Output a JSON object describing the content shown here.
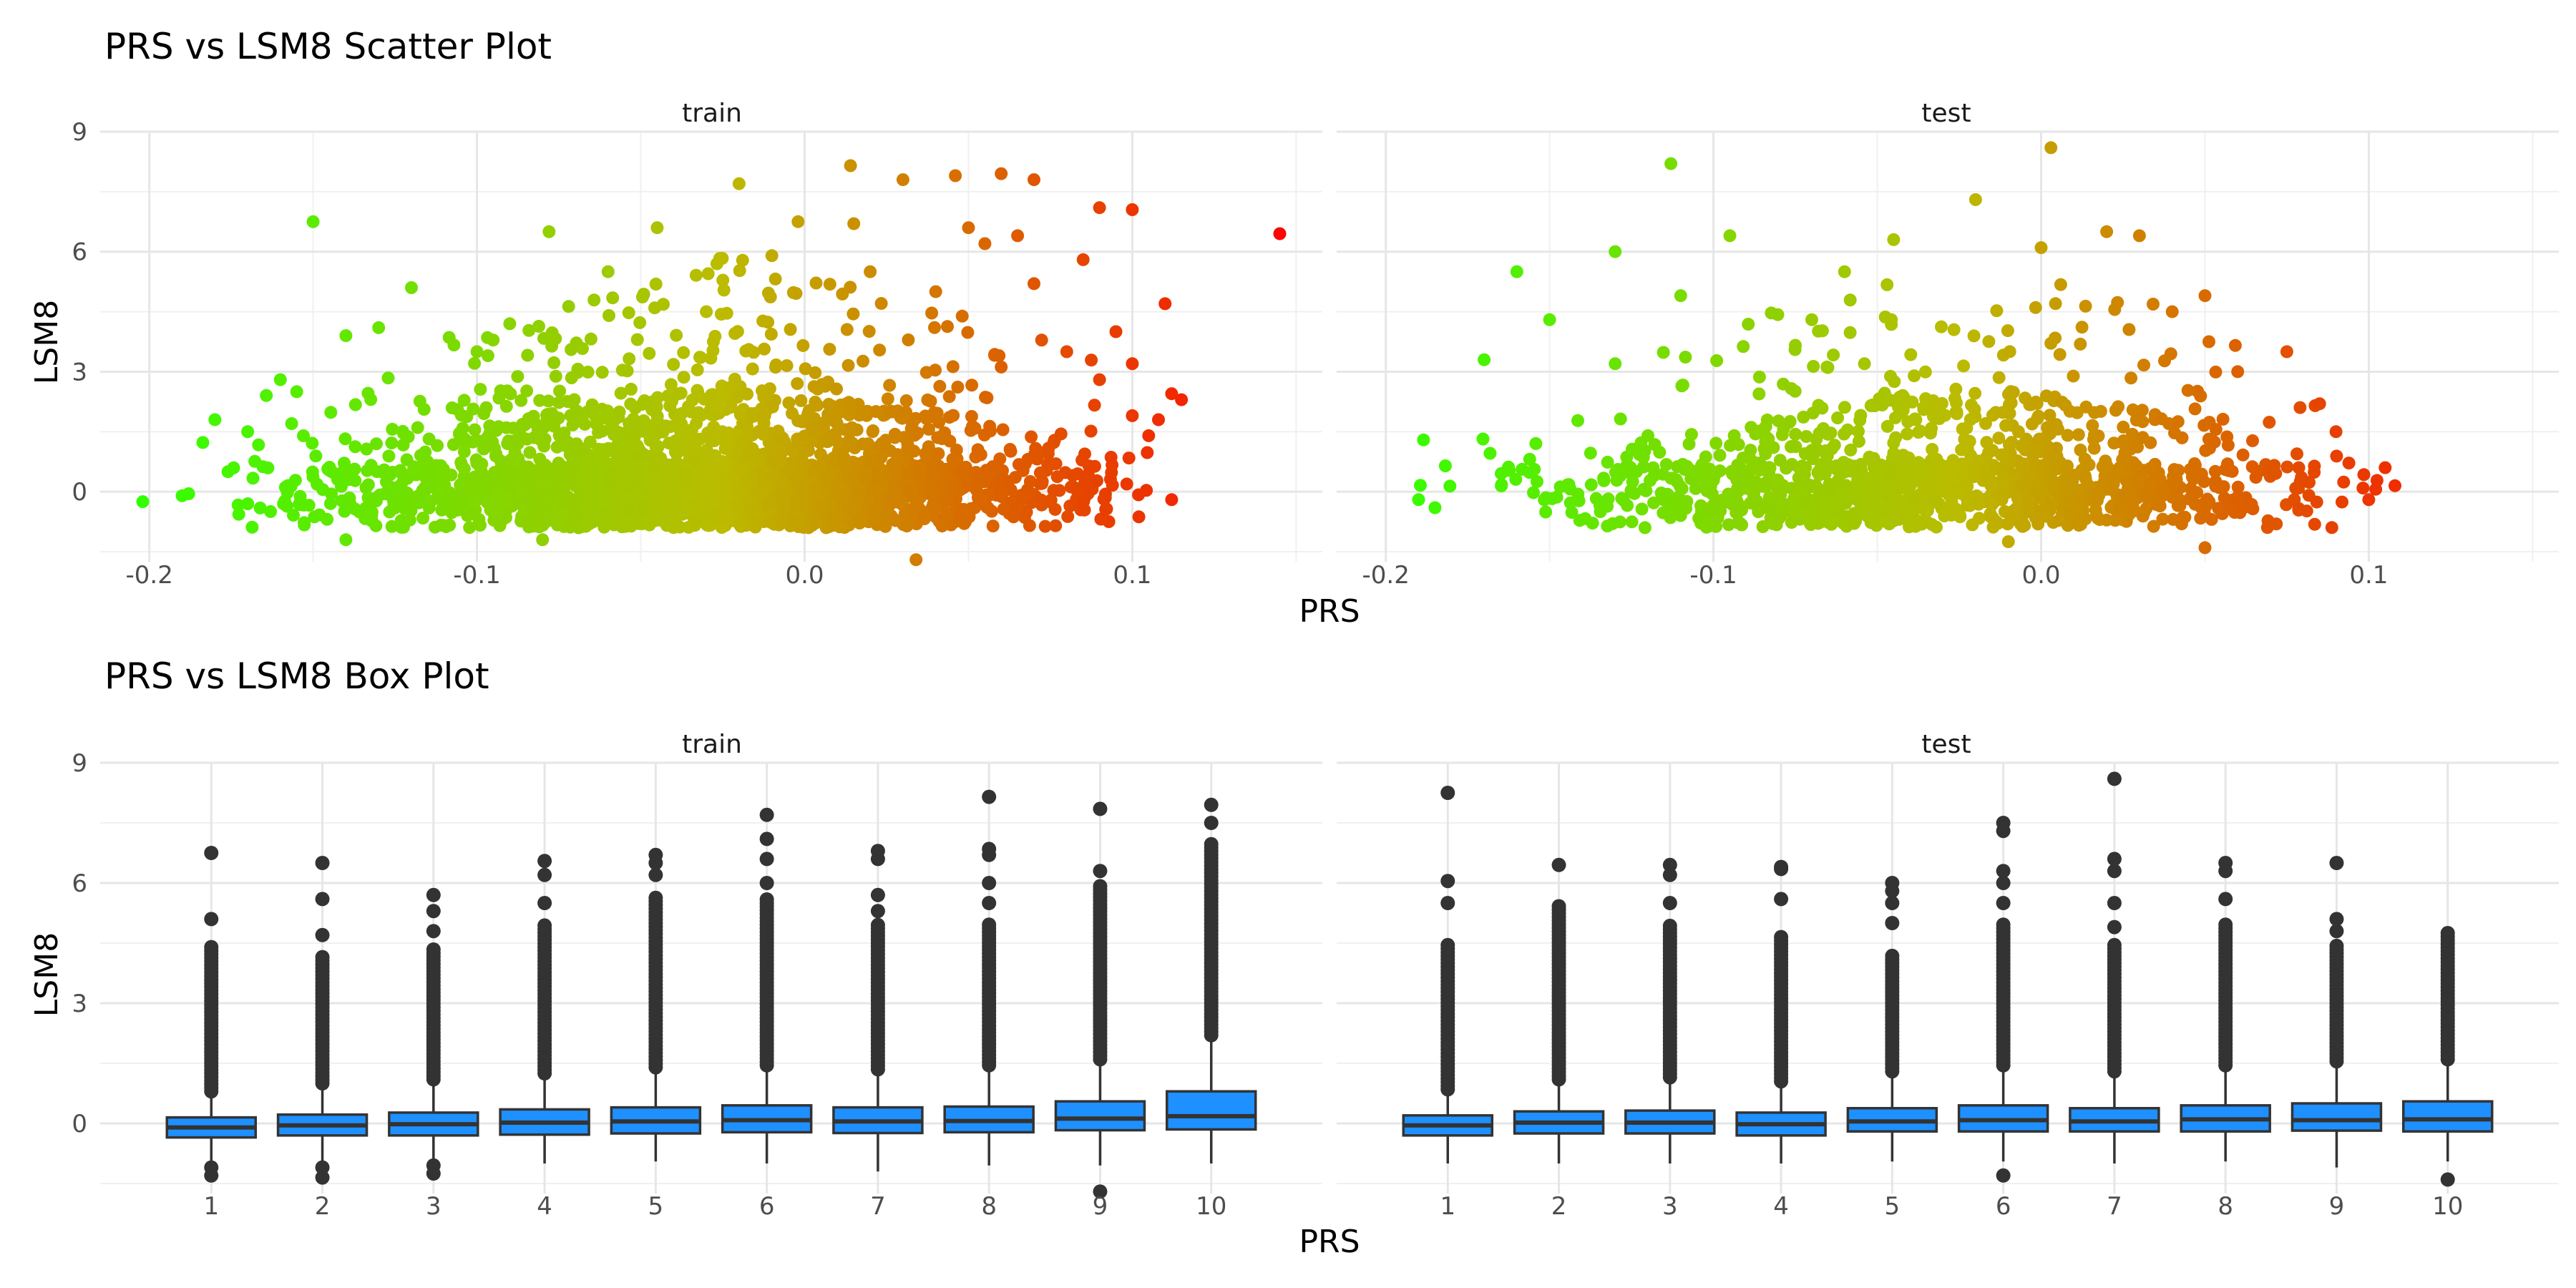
{
  "chart_data": [
    {
      "id": "scatter",
      "type": "scatter",
      "title": "PRS vs LSM8 Scatter Plot",
      "xlabel": "PRS",
      "ylabel": "LSM8",
      "xlim": [
        -0.215,
        0.158
      ],
      "ylim": [
        -1.75,
        9.0
      ],
      "x_ticks": [
        -0.2,
        -0.1,
        0.0,
        0.1
      ],
      "x_tick_labels": [
        "-0.2",
        "-0.1",
        "0.0",
        "0.1"
      ],
      "y_ticks": [
        0,
        3,
        6,
        9
      ],
      "y_tick_labels": [
        "0",
        "3",
        "6",
        "9"
      ],
      "grid": true,
      "color_scale": {
        "low": "#33ff00",
        "mid": "#bbbb00",
        "high": "#ff0000",
        "domain": [
          -0.2,
          0.15
        ]
      },
      "panels": [
        {
          "strip": "train",
          "points": [
            [
              -0.202,
              -0.25
            ],
            [
              -0.15,
              6.75
            ],
            [
              0.145,
              6.45
            ],
            [
              0.014,
              8.15
            ],
            [
              -0.02,
              7.7
            ],
            [
              0.046,
              7.9
            ],
            [
              0.06,
              7.95
            ],
            [
              0.07,
              7.8
            ],
            [
              0.1,
              7.05
            ],
            [
              0.09,
              7.1
            ],
            [
              0.11,
              4.7
            ],
            [
              0.115,
              2.3
            ],
            [
              0.112,
              2.45
            ],
            [
              0.105,
              1.4
            ],
            [
              0.108,
              1.8
            ],
            [
              0.112,
              -0.2
            ],
            [
              0.034,
              -1.7
            ],
            [
              -0.08,
              -1.2
            ],
            [
              -0.14,
              -1.2
            ],
            [
              -0.12,
              5.1
            ],
            [
              -0.078,
              6.5
            ],
            [
              -0.045,
              6.6
            ],
            [
              -0.002,
              6.75
            ],
            [
              0.03,
              7.8
            ],
            [
              0.04,
              5.0
            ],
            [
              0.055,
              6.2
            ],
            [
              0.085,
              5.8
            ],
            [
              0.095,
              4.0
            ],
            [
              0.1,
              3.2
            ],
            [
              -0.18,
              1.8
            ],
            [
              -0.19,
              -0.1
            ],
            [
              -0.188,
              -0.05
            ],
            [
              -0.16,
              2.8
            ],
            [
              -0.13,
              4.1
            ],
            [
              -0.14,
              3.9
            ],
            [
              -0.1,
              3.5
            ],
            [
              -0.06,
              5.5
            ],
            [
              -0.03,
              4.5
            ],
            [
              0.015,
              6.7
            ],
            [
              0.07,
              5.2
            ],
            [
              0.08,
              3.5
            ],
            [
              0.09,
              2.8
            ],
            [
              -0.17,
              1.5
            ],
            [
              -0.155,
              2.5
            ],
            [
              -0.09,
              4.2
            ],
            [
              0.05,
              6.6
            ],
            [
              0.065,
              6.4
            ],
            [
              0.02,
              5.5
            ],
            [
              -0.01,
              5.9
            ],
            [
              0.1,
              1.9
            ]
          ]
        },
        {
          "strip": "test",
          "points": [
            [
              -0.113,
              8.2
            ],
            [
              0.003,
              8.6
            ],
            [
              -0.02,
              7.3
            ],
            [
              -0.13,
              6.0
            ],
            [
              -0.16,
              5.5
            ],
            [
              -0.15,
              4.3
            ],
            [
              -0.17,
              3.3
            ],
            [
              -0.045,
              6.3
            ],
            [
              0.02,
              6.5
            ],
            [
              0.03,
              6.4
            ],
            [
              0.105,
              0.6
            ],
            [
              0.108,
              0.15
            ],
            [
              0.1,
              -0.2
            ],
            [
              -0.01,
              -1.25
            ],
            [
              0.05,
              -1.4
            ],
            [
              -0.185,
              -0.4
            ],
            [
              -0.19,
              -0.2
            ],
            [
              -0.095,
              6.4
            ],
            [
              -0.06,
              5.5
            ],
            [
              0.0,
              6.1
            ],
            [
              0.05,
              4.9
            ],
            [
              0.075,
              3.5
            ],
            [
              0.085,
              2.2
            ],
            [
              -0.11,
              4.9
            ],
            [
              -0.13,
              3.2
            ],
            [
              0.06,
              3.0
            ],
            [
              0.09,
              1.5
            ],
            [
              -0.07,
              4.3
            ],
            [
              0.04,
              4.5
            ],
            [
              -0.12,
              1.4
            ]
          ]
        }
      ]
    },
    {
      "id": "box",
      "type": "box",
      "title": "PRS vs LSM8 Box Plot",
      "xlabel": "PRS",
      "ylabel": "LSM8",
      "categories": [
        "1",
        "2",
        "3",
        "4",
        "5",
        "6",
        "7",
        "8",
        "9",
        "10"
      ],
      "ylim": [
        -1.75,
        9.0
      ],
      "y_ticks": [
        0,
        3,
        6,
        9
      ],
      "y_tick_labels": [
        "0",
        "3",
        "6",
        "9"
      ],
      "box_fill": "#1e90ff",
      "box_stroke": "#333333",
      "panels": [
        {
          "strip": "train",
          "boxes": [
            {
              "q1": -0.35,
              "median": -0.1,
              "q3": 0.15,
              "whisker_low": -1.0,
              "whisker_high": 0.8,
              "outlier_min": 0.8,
              "outlier_max": 4.45,
              "outliers": [
                5.1,
                6.75,
                -1.1,
                -1.3
              ]
            },
            {
              "q1": -0.3,
              "median": -0.05,
              "q3": 0.22,
              "whisker_low": -1.0,
              "whisker_high": 1.0,
              "outlier_min": 1.0,
              "outlier_max": 4.2,
              "outliers": [
                4.7,
                5.6,
                6.5,
                -1.1,
                -1.35
              ]
            },
            {
              "q1": -0.3,
              "median": -0.02,
              "q3": 0.27,
              "whisker_low": -1.0,
              "whisker_high": 1.1,
              "outlier_min": 1.1,
              "outlier_max": 4.4,
              "outliers": [
                4.8,
                5.3,
                5.7,
                -1.05,
                -1.25
              ]
            },
            {
              "q1": -0.28,
              "median": 0.02,
              "q3": 0.35,
              "whisker_low": -1.0,
              "whisker_high": 1.25,
              "outlier_min": 1.25,
              "outlier_max": 5.0,
              "outliers": [
                5.5,
                6.2,
                6.55
              ]
            },
            {
              "q1": -0.25,
              "median": 0.05,
              "q3": 0.4,
              "whisker_low": -0.95,
              "whisker_high": 1.4,
              "outlier_min": 1.4,
              "outlier_max": 5.7,
              "outliers": [
                6.2,
                6.5,
                6.7
              ]
            },
            {
              "q1": -0.22,
              "median": 0.08,
              "q3": 0.45,
              "whisker_low": -1.0,
              "whisker_high": 1.45,
              "outlier_min": 1.45,
              "outlier_max": 5.6,
              "outliers": [
                6.0,
                6.6,
                7.1,
                7.7
              ]
            },
            {
              "q1": -0.24,
              "median": 0.05,
              "q3": 0.4,
              "whisker_low": -1.2,
              "whisker_high": 1.35,
              "outlier_min": 1.35,
              "outlier_max": 5.0,
              "outliers": [
                5.3,
                5.7,
                6.6,
                6.8
              ]
            },
            {
              "q1": -0.22,
              "median": 0.06,
              "q3": 0.42,
              "whisker_low": -1.05,
              "whisker_high": 1.45,
              "outlier_min": 1.45,
              "outlier_max": 5.0,
              "outliers": [
                5.5,
                6.0,
                6.7,
                6.85,
                8.15
              ]
            },
            {
              "q1": -0.17,
              "median": 0.12,
              "q3": 0.55,
              "whisker_low": -1.05,
              "whisker_high": 1.6,
              "outlier_min": 1.6,
              "outlier_max": 6.0,
              "outliers": [
                6.3,
                7.85,
                -1.7
              ]
            },
            {
              "q1": -0.15,
              "median": 0.18,
              "q3": 0.8,
              "whisker_low": -1.0,
              "whisker_high": 2.2,
              "outlier_min": 2.2,
              "outlier_max": 7.0,
              "outliers": [
                7.5,
                7.95
              ]
            }
          ]
        },
        {
          "strip": "test",
          "boxes": [
            {
              "q1": -0.3,
              "median": -0.05,
              "q3": 0.2,
              "whisker_low": -1.0,
              "whisker_high": 0.85,
              "outlier_min": 0.85,
              "outlier_max": 4.5,
              "outliers": [
                5.5,
                6.05,
                8.25
              ]
            },
            {
              "q1": -0.25,
              "median": 0.02,
              "q3": 0.3,
              "whisker_low": -1.0,
              "whisker_high": 1.1,
              "outlier_min": 1.1,
              "outlier_max": 5.5,
              "outliers": [
                6.45
              ]
            },
            {
              "q1": -0.25,
              "median": 0.02,
              "q3": 0.32,
              "whisker_low": -1.0,
              "whisker_high": 1.15,
              "outlier_min": 1.15,
              "outlier_max": 5.0,
              "outliers": [
                5.5,
                6.2,
                6.45
              ]
            },
            {
              "q1": -0.3,
              "median": -0.02,
              "q3": 0.27,
              "whisker_low": -1.0,
              "whisker_high": 1.05,
              "outlier_min": 1.05,
              "outlier_max": 4.7,
              "outliers": [
                5.6,
                6.35,
                6.4
              ]
            },
            {
              "q1": -0.2,
              "median": 0.05,
              "q3": 0.38,
              "whisker_low": -0.95,
              "whisker_high": 1.3,
              "outlier_min": 1.3,
              "outlier_max": 4.2,
              "outliers": [
                5.0,
                5.5,
                5.8,
                6.0
              ]
            },
            {
              "q1": -0.2,
              "median": 0.08,
              "q3": 0.45,
              "whisker_low": -0.95,
              "whisker_high": 1.45,
              "outlier_min": 1.45,
              "outlier_max": 5.0,
              "outliers": [
                5.5,
                6.0,
                6.3,
                7.3,
                7.5,
                -1.3
              ]
            },
            {
              "q1": -0.2,
              "median": 0.05,
              "q3": 0.38,
              "whisker_low": -1.0,
              "whisker_high": 1.3,
              "outlier_min": 1.3,
              "outlier_max": 4.5,
              "outliers": [
                4.9,
                5.5,
                6.3,
                6.6,
                8.6
              ]
            },
            {
              "q1": -0.2,
              "median": 0.1,
              "q3": 0.45,
              "whisker_low": -0.95,
              "whisker_high": 1.45,
              "outlier_min": 1.45,
              "outlier_max": 5.0,
              "outliers": [
                5.6,
                6.3,
                6.5
              ]
            },
            {
              "q1": -0.18,
              "median": 0.08,
              "q3": 0.5,
              "whisker_low": -1.1,
              "whisker_high": 1.55,
              "outlier_min": 1.55,
              "outlier_max": 4.5,
              "outliers": [
                4.8,
                5.1,
                6.5
              ]
            },
            {
              "q1": -0.2,
              "median": 0.1,
              "q3": 0.55,
              "whisker_low": -0.95,
              "whisker_high": 1.6,
              "outlier_min": 1.6,
              "outlier_max": 4.8,
              "outliers": [
                -1.4
              ]
            }
          ]
        }
      ]
    }
  ]
}
